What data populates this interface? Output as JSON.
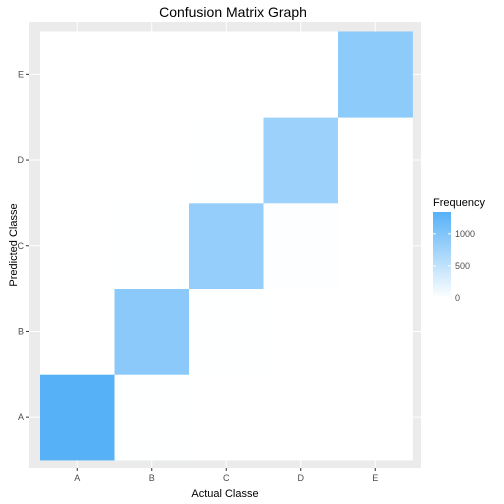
{
  "chart_data": {
    "type": "heatmap",
    "title": "Confusion Matrix Graph",
    "xlabel": "Actual Classe",
    "ylabel": "Predicted Classe",
    "x_categories": [
      "A",
      "B",
      "C",
      "D",
      "E"
    ],
    "y_categories": [
      "A",
      "B",
      "C",
      "D",
      "E"
    ],
    "cells": [
      {
        "actual": "A",
        "predicted": "A",
        "value": 1340
      },
      {
        "actual": "B",
        "predicted": "A",
        "value": 5
      },
      {
        "actual": "C",
        "predicted": "A",
        "value": 0
      },
      {
        "actual": "D",
        "predicted": "A",
        "value": 0
      },
      {
        "actual": "E",
        "predicted": "A",
        "value": 0
      },
      {
        "actual": "A",
        "predicted": "B",
        "value": 3
      },
      {
        "actual": "B",
        "predicted": "B",
        "value": 920
      },
      {
        "actual": "C",
        "predicted": "B",
        "value": 6
      },
      {
        "actual": "D",
        "predicted": "B",
        "value": 0
      },
      {
        "actual": "E",
        "predicted": "B",
        "value": 0
      },
      {
        "actual": "A",
        "predicted": "C",
        "value": 0
      },
      {
        "actual": "B",
        "predicted": "C",
        "value": 5
      },
      {
        "actual": "C",
        "predicted": "C",
        "value": 840
      },
      {
        "actual": "D",
        "predicted": "C",
        "value": 15
      },
      {
        "actual": "E",
        "predicted": "C",
        "value": 0
      },
      {
        "actual": "A",
        "predicted": "D",
        "value": 0
      },
      {
        "actual": "B",
        "predicted": "D",
        "value": 0
      },
      {
        "actual": "C",
        "predicted": "D",
        "value": 5
      },
      {
        "actual": "D",
        "predicted": "D",
        "value": 790
      },
      {
        "actual": "E",
        "predicted": "D",
        "value": 3
      },
      {
        "actual": "A",
        "predicted": "E",
        "value": 0
      },
      {
        "actual": "B",
        "predicted": "E",
        "value": 0
      },
      {
        "actual": "C",
        "predicted": "E",
        "value": 0
      },
      {
        "actual": "D",
        "predicted": "E",
        "value": 2
      },
      {
        "actual": "E",
        "predicted": "E",
        "value": 900
      }
    ],
    "color_scale": {
      "low": "#ffffff",
      "high": "#56b1f7",
      "min": 0,
      "max": 1340
    },
    "grid": true,
    "legend": {
      "title": "Frequency",
      "position": "right",
      "breaks": [
        0,
        500,
        1000
      ]
    }
  }
}
